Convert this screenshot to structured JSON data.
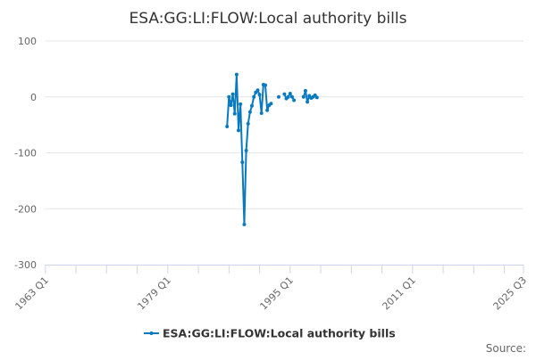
{
  "chart_data": {
    "type": "line",
    "title": "ESA:GG:LI:FLOW:Local authority bills",
    "xlabel": "",
    "ylabel": "",
    "x_ticks": [
      "1963 Q1",
      "1979 Q1",
      "1995 Q1",
      "2011 Q1",
      "2025 Q3"
    ],
    "xlim": [
      "1963 Q1",
      "2025 Q3"
    ],
    "y_ticks": [
      100,
      0,
      -100,
      -200,
      -300
    ],
    "ylim": [
      -300,
      100
    ],
    "grid": true,
    "legend_placement": "bottom",
    "source_label": "Source:",
    "series": [
      {
        "name": "ESA:GG:LI:FLOW:Local authority bills",
        "color": "#0a7ac0",
        "points": [
          [
            "1986 Q4",
            -53
          ],
          [
            "1987 Q1",
            0
          ],
          [
            "1987 Q2",
            -15
          ],
          [
            "1987 Q3",
            5
          ],
          [
            "1987 Q4",
            -30
          ],
          [
            "1988 Q1",
            40
          ],
          [
            "1988 Q2",
            -60
          ],
          [
            "1988 Q3",
            -13
          ],
          [
            "1988 Q4",
            -117
          ],
          [
            "1989 Q1",
            -228
          ],
          [
            "1989 Q2",
            -96
          ],
          [
            "1989 Q3",
            -48
          ],
          [
            "1989 Q4",
            -27
          ],
          [
            "1990 Q1",
            -16
          ],
          [
            "1990 Q2",
            0
          ],
          [
            "1990 Q3",
            8
          ],
          [
            "1990 Q4",
            12
          ],
          [
            "1991 Q1",
            4
          ],
          [
            "1991 Q2",
            -29
          ],
          [
            "1991 Q3",
            22
          ],
          [
            "1991 Q4",
            21
          ],
          [
            "1992 Q1",
            -24
          ],
          [
            "1992 Q2",
            -15
          ],
          [
            "1992 Q3",
            -12
          ],
          null,
          [
            "1993 Q3",
            0
          ],
          null,
          [
            "1994 Q2",
            5
          ],
          [
            "1994 Q3",
            -3
          ],
          [
            "1994 Q4",
            0
          ],
          [
            "1995 Q1",
            6
          ],
          [
            "1995 Q2",
            0
          ],
          [
            "1995 Q3",
            -6
          ],
          null,
          [
            "1996 Q4",
            0
          ],
          [
            "1997 Q1",
            11
          ],
          [
            "1997 Q2",
            -9
          ],
          [
            "1997 Q3",
            2
          ],
          [
            "1997 Q4",
            -2
          ],
          [
            "1998 Q1",
            0
          ],
          [
            "1998 Q2",
            3
          ],
          [
            "1998 Q3",
            -1
          ]
        ]
      }
    ]
  }
}
